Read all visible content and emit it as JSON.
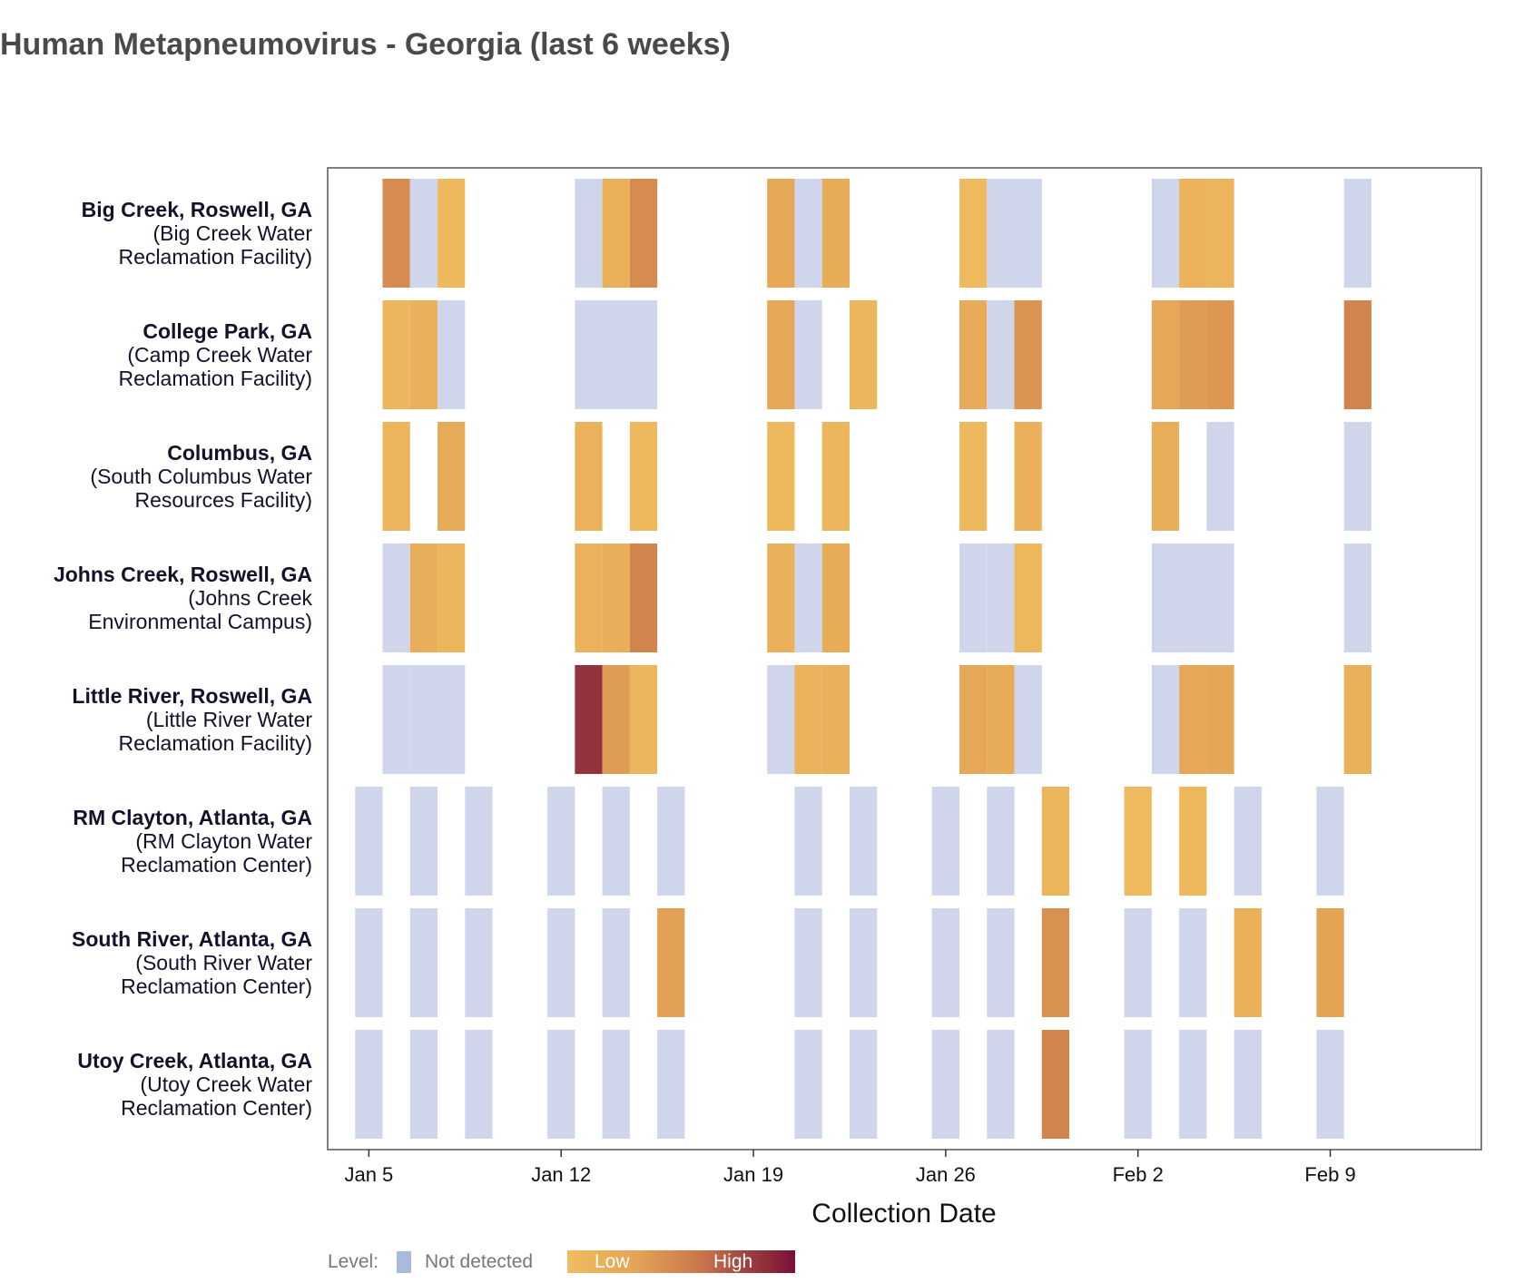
{
  "title": "Human Metapneumovirus - Georgia (last 6 weeks)",
  "colors": {
    "not_detected": "#cfd6ec",
    "low": "#f0bc5e",
    "high": "#7a1035",
    "frame": "#555555"
  },
  "chart_data": {
    "type": "heatmap",
    "title": "Human Metapneumovirus - Georgia (last 6 weeks)",
    "xlabel": "Collection Date",
    "x_ticks": [
      {
        "day": 0,
        "label": "Jan 5"
      },
      {
        "day": 7,
        "label": "Jan 12"
      },
      {
        "day": 14,
        "label": "Jan 19"
      },
      {
        "day": 21,
        "label": "Jan 26"
      },
      {
        "day": 28,
        "label": "Feb 2"
      },
      {
        "day": 35,
        "label": "Feb 9"
      }
    ],
    "x_range_days": [
      -1.5,
      40.5
    ],
    "value_note": "day = days after Jan 5; level: null = Not detected, 0 (Low) to 1 (High)",
    "sites": [
      {
        "name": "Big Creek, Roswell, GA",
        "facility": [
          "(Big Creek Water",
          "Reclamation Facility)"
        ],
        "samples": [
          {
            "day": 1,
            "level": 0.45
          },
          {
            "day": 2,
            "level": null
          },
          {
            "day": 3,
            "level": 0.05
          },
          {
            "day": 8,
            "level": null
          },
          {
            "day": 9,
            "level": 0.15
          },
          {
            "day": 10,
            "level": 0.45
          },
          {
            "day": 15,
            "level": 0.25
          },
          {
            "day": 16,
            "level": null
          },
          {
            "day": 17,
            "level": 0.2
          },
          {
            "day": 22,
            "level": 0.02
          },
          {
            "day": 23,
            "level": null
          },
          {
            "day": 24,
            "level": null
          },
          {
            "day": 29,
            "level": null
          },
          {
            "day": 30,
            "level": 0.12
          },
          {
            "day": 31,
            "level": 0.1
          },
          {
            "day": 36,
            "level": null
          }
        ]
      },
      {
        "name": "College Park, GA",
        "facility": [
          "(Camp Creek Water",
          "Reclamation Facility)"
        ],
        "samples": [
          {
            "day": 1,
            "level": 0.08
          },
          {
            "day": 2,
            "level": 0.15
          },
          {
            "day": 3,
            "level": null
          },
          {
            "day": 8,
            "level": null
          },
          {
            "day": 9,
            "level": null
          },
          {
            "day": 10,
            "level": null
          },
          {
            "day": 15,
            "level": 0.25
          },
          {
            "day": 16,
            "level": null
          },
          {
            "day": 18,
            "level": 0.08
          },
          {
            "day": 22,
            "level": 0.2
          },
          {
            "day": 23,
            "level": null
          },
          {
            "day": 24,
            "level": 0.4
          },
          {
            "day": 29,
            "level": 0.25
          },
          {
            "day": 30,
            "level": 0.35
          },
          {
            "day": 31,
            "level": 0.38
          },
          {
            "day": 36,
            "level": 0.5
          }
        ]
      },
      {
        "name": "Columbus, GA",
        "facility": [
          "(South Columbus Water",
          "Resources Facility)"
        ],
        "samples": [
          {
            "day": 1,
            "level": 0.1
          },
          {
            "day": 3,
            "level": 0.22
          },
          {
            "day": 8,
            "level": 0.12
          },
          {
            "day": 10,
            "level": 0.05
          },
          {
            "day": 15,
            "level": 0.05
          },
          {
            "day": 17,
            "level": 0.07
          },
          {
            "day": 22,
            "level": 0.05
          },
          {
            "day": 24,
            "level": 0.15
          },
          {
            "day": 29,
            "level": 0.18
          },
          {
            "day": 31,
            "level": null
          },
          {
            "day": 36,
            "level": null
          }
        ]
      },
      {
        "name": "Johns Creek, Roswell, GA",
        "facility": [
          "(Johns Creek",
          "Environmental Campus)"
        ],
        "samples": [
          {
            "day": 1,
            "level": null
          },
          {
            "day": 2,
            "level": 0.18
          },
          {
            "day": 3,
            "level": 0.08
          },
          {
            "day": 8,
            "level": 0.12
          },
          {
            "day": 9,
            "level": 0.18
          },
          {
            "day": 10,
            "level": 0.5
          },
          {
            "day": 15,
            "level": 0.15
          },
          {
            "day": 16,
            "level": null
          },
          {
            "day": 17,
            "level": 0.2
          },
          {
            "day": 22,
            "level": null
          },
          {
            "day": 23,
            "level": null
          },
          {
            "day": 24,
            "level": 0.06
          },
          {
            "day": 29,
            "level": null
          },
          {
            "day": 30,
            "level": null
          },
          {
            "day": 31,
            "level": null
          },
          {
            "day": 36,
            "level": null
          }
        ]
      },
      {
        "name": "Little River, Roswell, GA",
        "facility": [
          "(Little River Water",
          "Reclamation Facility)"
        ],
        "samples": [
          {
            "day": 1,
            "level": null
          },
          {
            "day": 2,
            "level": null
          },
          {
            "day": 3,
            "level": null
          },
          {
            "day": 8,
            "level": 0.85
          },
          {
            "day": 9,
            "level": 0.35
          },
          {
            "day": 10,
            "level": 0.08
          },
          {
            "day": 15,
            "level": null
          },
          {
            "day": 16,
            "level": 0.12
          },
          {
            "day": 17,
            "level": 0.15
          },
          {
            "day": 22,
            "level": 0.25
          },
          {
            "day": 23,
            "level": 0.2
          },
          {
            "day": 24,
            "level": null
          },
          {
            "day": 29,
            "level": null
          },
          {
            "day": 30,
            "level": 0.25
          },
          {
            "day": 31,
            "level": 0.28
          },
          {
            "day": 36,
            "level": 0.15
          }
        ]
      },
      {
        "name": "RM Clayton, Atlanta, GA",
        "facility": [
          "(RM Clayton Water",
          "Reclamation Center)"
        ],
        "samples": [
          {
            "day": 0,
            "level": null
          },
          {
            "day": 2,
            "level": null
          },
          {
            "day": 4,
            "level": null
          },
          {
            "day": 7,
            "level": null
          },
          {
            "day": 9,
            "level": null
          },
          {
            "day": 11,
            "level": null
          },
          {
            "day": 16,
            "level": null
          },
          {
            "day": 18,
            "level": null
          },
          {
            "day": 21,
            "level": null
          },
          {
            "day": 23,
            "level": null
          },
          {
            "day": 25,
            "level": 0.1
          },
          {
            "day": 28,
            "level": 0.03
          },
          {
            "day": 30,
            "level": 0.06
          },
          {
            "day": 32,
            "level": null
          },
          {
            "day": 35,
            "level": null
          }
        ]
      },
      {
        "name": "South River, Atlanta, GA",
        "facility": [
          "(South River Water",
          "Reclamation Center)"
        ],
        "samples": [
          {
            "day": 0,
            "level": null
          },
          {
            "day": 2,
            "level": null
          },
          {
            "day": 4,
            "level": null
          },
          {
            "day": 7,
            "level": null
          },
          {
            "day": 9,
            "level": null
          },
          {
            "day": 11,
            "level": 0.32
          },
          {
            "day": 16,
            "level": null
          },
          {
            "day": 18,
            "level": null
          },
          {
            "day": 21,
            "level": null
          },
          {
            "day": 23,
            "level": null
          },
          {
            "day": 25,
            "level": 0.42
          },
          {
            "day": 28,
            "level": null
          },
          {
            "day": 30,
            "level": null
          },
          {
            "day": 32,
            "level": 0.15
          },
          {
            "day": 35,
            "level": 0.3
          }
        ]
      },
      {
        "name": "Utoy Creek, Atlanta, GA",
        "facility": [
          "(Utoy Creek Water",
          "Reclamation Center)"
        ],
        "samples": [
          {
            "day": 0,
            "level": null
          },
          {
            "day": 2,
            "level": null
          },
          {
            "day": 4,
            "level": null
          },
          {
            "day": 7,
            "level": null
          },
          {
            "day": 9,
            "level": null
          },
          {
            "day": 11,
            "level": null
          },
          {
            "day": 16,
            "level": null
          },
          {
            "day": 18,
            "level": null
          },
          {
            "day": 21,
            "level": null
          },
          {
            "day": 23,
            "level": null
          },
          {
            "day": 25,
            "level": 0.5
          },
          {
            "day": 28,
            "level": null
          },
          {
            "day": 30,
            "level": null
          },
          {
            "day": 32,
            "level": null
          },
          {
            "day": 35,
            "level": null
          }
        ]
      }
    ],
    "legend": {
      "title": "Level:",
      "not_detected_label": "Not detected",
      "low_label": "Low",
      "high_label": "High"
    }
  }
}
